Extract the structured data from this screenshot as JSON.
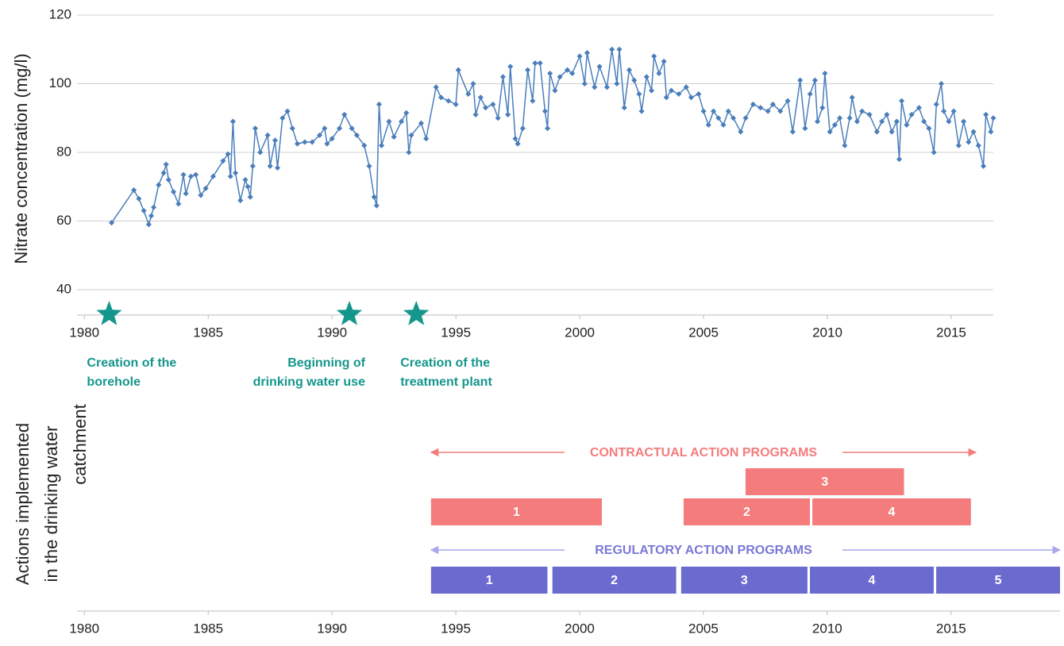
{
  "chart_data": [
    {
      "type": "line",
      "ylabel": "Nitrate concentration (mg/l)",
      "color": "#4a7ebb",
      "xlim": [
        1979.8,
        2016.7
      ],
      "xticks": [
        1980,
        1985,
        1990,
        1995,
        2000,
        2005,
        2010,
        2015
      ],
      "ylim": [
        32.6,
        120
      ],
      "yticks": [
        40,
        60,
        80,
        100,
        120
      ],
      "grid": true,
      "x": [
        1981.1,
        1982.0,
        1982.2,
        1982.4,
        1982.6,
        1982.7,
        1982.8,
        1983.0,
        1983.2,
        1983.3,
        1983.4,
        1983.6,
        1983.8,
        1984.0,
        1984.1,
        1984.3,
        1984.5,
        1984.7,
        1984.9,
        1985.2,
        1985.6,
        1985.8,
        1985.9,
        1986.0,
        1986.1,
        1986.3,
        1986.5,
        1986.6,
        1986.7,
        1986.8,
        1986.9,
        1987.1,
        1987.4,
        1987.5,
        1987.7,
        1987.8,
        1988.0,
        1988.2,
        1988.4,
        1988.6,
        1988.9,
        1989.2,
        1989.5,
        1989.7,
        1989.8,
        1990.0,
        1990.3,
        1990.5,
        1990.8,
        1991.0,
        1991.3,
        1991.5,
        1991.7,
        1991.8,
        1991.9,
        1992.0,
        1992.3,
        1992.5,
        1992.8,
        1993.0,
        1993.1,
        1993.2,
        1993.6,
        1993.8,
        1994.2,
        1994.4,
        1994.7,
        1995.0,
        1995.1,
        1995.5,
        1995.7,
        1995.8,
        1996.0,
        1996.2,
        1996.5,
        1996.7,
        1996.9,
        1997.1,
        1997.2,
        1997.4,
        1997.5,
        1997.7,
        1997.9,
        1998.1,
        1998.2,
        1998.4,
        1998.6,
        1998.7,
        1998.8,
        1999.0,
        1999.2,
        1999.5,
        1999.7,
        2000.0,
        2000.2,
        2000.3,
        2000.6,
        2000.8,
        2001.1,
        2001.3,
        2001.5,
        2001.6,
        2001.8,
        2002.0,
        2002.2,
        2002.4,
        2002.5,
        2002.7,
        2002.9,
        2003.0,
        2003.2,
        2003.4,
        2003.5,
        2003.7,
        2004.0,
        2004.3,
        2004.5,
        2004.8,
        2005.0,
        2005.2,
        2005.4,
        2005.6,
        2005.8,
        2006.0,
        2006.2,
        2006.5,
        2006.7,
        2007.0,
        2007.3,
        2007.6,
        2007.8,
        2008.1,
        2008.4,
        2008.6,
        2008.9,
        2009.1,
        2009.3,
        2009.5,
        2009.6,
        2009.8,
        2009.9,
        2010.1,
        2010.3,
        2010.5,
        2010.7,
        2010.9,
        2011.0,
        2011.2,
        2011.4,
        2011.7,
        2012.0,
        2012.2,
        2012.4,
        2012.6,
        2012.8,
        2012.9,
        2013.0,
        2013.2,
        2013.4,
        2013.7,
        2013.9,
        2014.1,
        2014.3,
        2014.4,
        2014.6,
        2014.7,
        2014.9,
        2015.1,
        2015.3,
        2015.5,
        2015.7,
        2015.9,
        2016.1,
        2016.3,
        2016.4,
        2016.6,
        2016.7
      ],
      "values": [
        59.5,
        69,
        66.5,
        63,
        59,
        61.5,
        64,
        70.5,
        74,
        76.5,
        72,
        68.5,
        65,
        73.5,
        68,
        73,
        73.5,
        67.5,
        69.5,
        73,
        77.5,
        79.5,
        73,
        89,
        74,
        66,
        72,
        70,
        67,
        76,
        87,
        80,
        85,
        76,
        83.5,
        75.5,
        90,
        92,
        87,
        82.5,
        83,
        83,
        85,
        87,
        82.5,
        84,
        87,
        91,
        87,
        85,
        82,
        76,
        67,
        64.5,
        94,
        82,
        89,
        84.5,
        89,
        91.5,
        80,
        85,
        88.5,
        84,
        99,
        96,
        95,
        94,
        104,
        97,
        100,
        91,
        96,
        93,
        94,
        90,
        102,
        91,
        105,
        84,
        82.5,
        87,
        104,
        95,
        106,
        106,
        92,
        87,
        103,
        98,
        102,
        104,
        103,
        108,
        100,
        109,
        99,
        105,
        99,
        110,
        100,
        110,
        93,
        104,
        101,
        97,
        92,
        102,
        98,
        108,
        103,
        106.5,
        96,
        98,
        97,
        99,
        96,
        97,
        92,
        88,
        92,
        90,
        88,
        92,
        90,
        86,
        90,
        94,
        93,
        92,
        94,
        92,
        95,
        86,
        101,
        87,
        97,
        101,
        89,
        93,
        103,
        86,
        88,
        90,
        82,
        90,
        96,
        89,
        92,
        91,
        86,
        89,
        91,
        86,
        89,
        78,
        95,
        88,
        91,
        93,
        89,
        87,
        80,
        94,
        100,
        92,
        89,
        92,
        82,
        89,
        83,
        86,
        82,
        76,
        91,
        86,
        90
      ],
      "annotations": [
        {
          "x": 1981.0,
          "label": [
            "Creation of the",
            "borehole"
          ]
        },
        {
          "x": 1990.7,
          "label": [
            "Beginning of",
            "drinking water use"
          ]
        },
        {
          "x": 1993.4,
          "label": [
            "Creation of the",
            "treatment plant"
          ]
        }
      ],
      "annotation_color": "#14968c"
    },
    {
      "type": "gantt",
      "ylabel": [
        "Actions implemented",
        "in the drinking water",
        "catchment"
      ],
      "xlim": [
        1979.8,
        2019.4
      ],
      "xticks": [
        1980,
        1985,
        1990,
        1995,
        2000,
        2005,
        2010,
        2015
      ],
      "groups": [
        {
          "name": "CONTRACTUAL ACTION PROGRAMS",
          "color": "#f47c7c",
          "span": [
            1994.0,
            2016.0
          ],
          "bars": [
            {
              "label": "1",
              "start": 1994.0,
              "end": 2000.9
            },
            {
              "label": "2",
              "start": 2004.2,
              "end": 2009.3
            },
            {
              "label": "3",
              "start": 2006.7,
              "end": 2013.1
            },
            {
              "label": "4",
              "start": 2009.4,
              "end": 2015.8
            }
          ]
        },
        {
          "name": "REGULATORY ACTION PROGRAMS",
          "color": "#6b6bcf",
          "span": [
            1994.0,
            2019.4
          ],
          "bars": [
            {
              "label": "1",
              "start": 1994.0,
              "end": 1998.7
            },
            {
              "label": "2",
              "start": 1998.9,
              "end": 2003.9
            },
            {
              "label": "3",
              "start": 2004.1,
              "end": 2009.2
            },
            {
              "label": "4",
              "start": 2009.3,
              "end": 2014.3
            },
            {
              "label": "5",
              "start": 2014.4,
              "end": 2019.4
            }
          ]
        }
      ]
    }
  ]
}
